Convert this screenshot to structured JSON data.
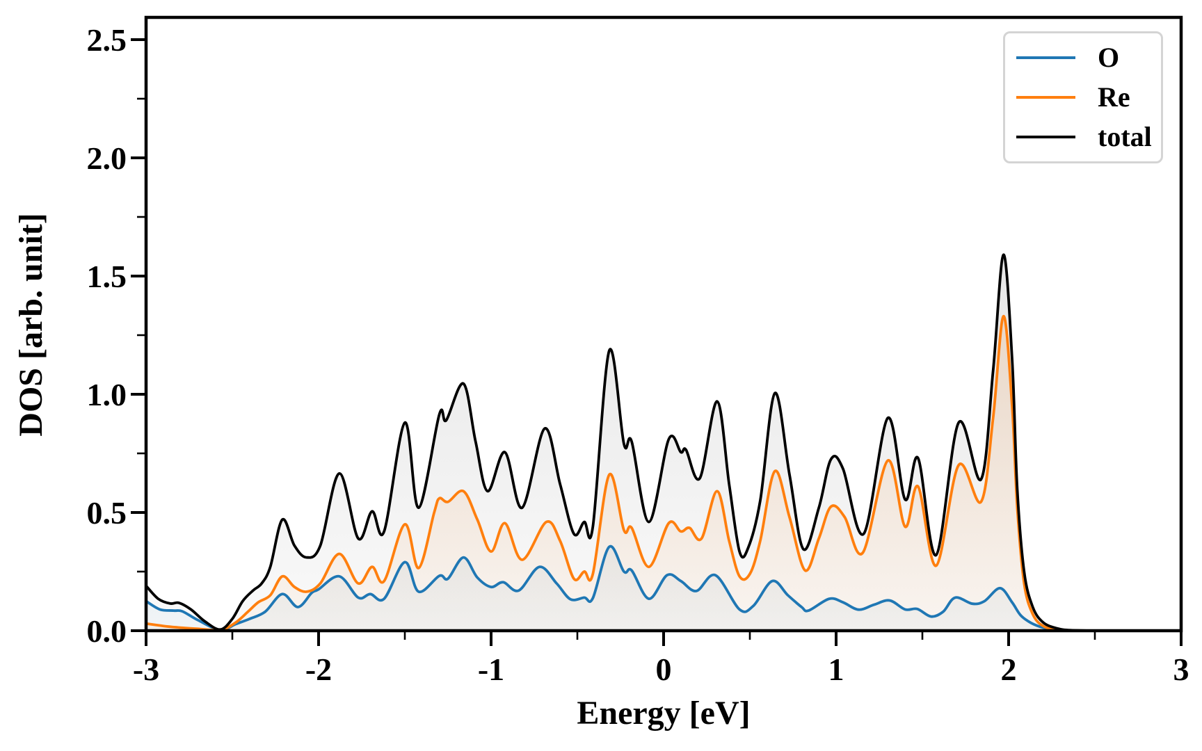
{
  "figure": {
    "background_color": "#ffffff",
    "frame_color": "#000000"
  },
  "legend": {
    "position": "upper right",
    "entries": [
      {
        "label": "O",
        "color": "#1f77b4"
      },
      {
        "label": "Re",
        "color": "#ff7f0e"
      },
      {
        "label": "total",
        "color": "#000000"
      }
    ]
  },
  "chart_data": {
    "type": "line",
    "title": "",
    "xlabel": "Energy [eV]",
    "ylabel": "DOS [arb. unit]",
    "xlim": [
      -3,
      3
    ],
    "ylim": [
      0,
      2.594
    ],
    "grid": false,
    "x_ticks_major": [
      -3,
      -2,
      -1,
      0,
      1,
      2,
      3
    ],
    "x_tick_labels": [
      "-3",
      "-2",
      "-1",
      "0",
      "1",
      "2",
      "3"
    ],
    "x_ticks_minor": [
      -2.5,
      -1.5,
      -0.5,
      0.5,
      1.5,
      2.5
    ],
    "y_ticks_major": [
      0.0,
      0.5,
      1.0,
      1.5,
      2.0,
      2.5
    ],
    "y_tick_labels": [
      "0.0",
      "0.5",
      "1.0",
      "1.5",
      "2.0",
      "2.5"
    ],
    "y_ticks_minor": [
      0.25,
      0.75,
      1.25,
      1.75,
      2.25
    ],
    "legend_position": "upper right",
    "series": [
      {
        "name": "O",
        "color": "#1f77b4",
        "fill": "gradient",
        "points": [
          [
            -3.0,
            0.125
          ],
          [
            -2.92,
            0.09
          ],
          [
            -2.84,
            0.085
          ],
          [
            -2.79,
            0.082
          ],
          [
            -2.7,
            0.045
          ],
          [
            -2.57,
            0.003
          ],
          [
            -2.48,
            0.028
          ],
          [
            -2.4,
            0.05
          ],
          [
            -2.31,
            0.08
          ],
          [
            -2.21,
            0.155
          ],
          [
            -2.12,
            0.1
          ],
          [
            -2.04,
            0.16
          ],
          [
            -2.0,
            0.175
          ],
          [
            -1.88,
            0.23
          ],
          [
            -1.77,
            0.14
          ],
          [
            -1.7,
            0.155
          ],
          [
            -1.62,
            0.135
          ],
          [
            -1.5,
            0.29
          ],
          [
            -1.42,
            0.165
          ],
          [
            -1.3,
            0.232
          ],
          [
            -1.25,
            0.22
          ],
          [
            -1.16,
            0.31
          ],
          [
            -1.08,
            0.225
          ],
          [
            -1.0,
            0.185
          ],
          [
            -0.93,
            0.205
          ],
          [
            -0.84,
            0.17
          ],
          [
            -0.72,
            0.27
          ],
          [
            -0.62,
            0.2
          ],
          [
            -0.54,
            0.133
          ],
          [
            -0.46,
            0.14
          ],
          [
            -0.41,
            0.138
          ],
          [
            -0.315,
            0.355
          ],
          [
            -0.23,
            0.25
          ],
          [
            -0.185,
            0.255
          ],
          [
            -0.085,
            0.135
          ],
          [
            0.02,
            0.235
          ],
          [
            0.1,
            0.21
          ],
          [
            0.19,
            0.168
          ],
          [
            0.3,
            0.235
          ],
          [
            0.44,
            0.09
          ],
          [
            0.52,
            0.105
          ],
          [
            0.63,
            0.21
          ],
          [
            0.72,
            0.15
          ],
          [
            0.8,
            0.1
          ],
          [
            0.84,
            0.085
          ],
          [
            0.96,
            0.135
          ],
          [
            1.04,
            0.12
          ],
          [
            1.13,
            0.089
          ],
          [
            1.22,
            0.11
          ],
          [
            1.31,
            0.128
          ],
          [
            1.4,
            0.09
          ],
          [
            1.47,
            0.092
          ],
          [
            1.55,
            0.06
          ],
          [
            1.62,
            0.08
          ],
          [
            1.69,
            0.14
          ],
          [
            1.79,
            0.114
          ],
          [
            1.86,
            0.125
          ],
          [
            1.95,
            0.18
          ],
          [
            2.02,
            0.12
          ],
          [
            2.07,
            0.065
          ],
          [
            2.13,
            0.033
          ],
          [
            2.2,
            0.013
          ],
          [
            2.28,
            0.004
          ],
          [
            2.36,
            0.001
          ],
          [
            2.5,
            0
          ]
        ]
      },
      {
        "name": "Re",
        "color": "#ff7f0e",
        "fill": "gradient",
        "points": [
          [
            -3.0,
            0.03
          ],
          [
            -2.9,
            0.02
          ],
          [
            -2.8,
            0.013
          ],
          [
            -2.7,
            0.008
          ],
          [
            -2.57,
            0.002
          ],
          [
            -2.48,
            0.035
          ],
          [
            -2.41,
            0.08
          ],
          [
            -2.35,
            0.12
          ],
          [
            -2.28,
            0.15
          ],
          [
            -2.21,
            0.23
          ],
          [
            -2.14,
            0.185
          ],
          [
            -2.07,
            0.165
          ],
          [
            -1.99,
            0.2
          ],
          [
            -1.88,
            0.325
          ],
          [
            -1.77,
            0.2
          ],
          [
            -1.69,
            0.27
          ],
          [
            -1.62,
            0.21
          ],
          [
            -1.5,
            0.45
          ],
          [
            -1.42,
            0.265
          ],
          [
            -1.33,
            0.5
          ],
          [
            -1.3,
            0.56
          ],
          [
            -1.25,
            0.545
          ],
          [
            -1.16,
            0.59
          ],
          [
            -1.08,
            0.47
          ],
          [
            -1.0,
            0.335
          ],
          [
            -0.92,
            0.455
          ],
          [
            -0.82,
            0.3
          ],
          [
            -0.68,
            0.46
          ],
          [
            -0.6,
            0.38
          ],
          [
            -0.52,
            0.22
          ],
          [
            -0.46,
            0.25
          ],
          [
            -0.41,
            0.24
          ],
          [
            -0.315,
            0.66
          ],
          [
            -0.23,
            0.425
          ],
          [
            -0.185,
            0.435
          ],
          [
            -0.085,
            0.27
          ],
          [
            0.03,
            0.455
          ],
          [
            0.1,
            0.42
          ],
          [
            0.15,
            0.435
          ],
          [
            0.22,
            0.39
          ],
          [
            0.31,
            0.59
          ],
          [
            0.38,
            0.38
          ],
          [
            0.44,
            0.23
          ],
          [
            0.5,
            0.24
          ],
          [
            0.56,
            0.38
          ],
          [
            0.645,
            0.675
          ],
          [
            0.73,
            0.48
          ],
          [
            0.82,
            0.255
          ],
          [
            0.9,
            0.39
          ],
          [
            0.97,
            0.525
          ],
          [
            1.05,
            0.48
          ],
          [
            1.155,
            0.33
          ],
          [
            1.3,
            0.72
          ],
          [
            1.4,
            0.44
          ],
          [
            1.475,
            0.61
          ],
          [
            1.58,
            0.275
          ],
          [
            1.71,
            0.7
          ],
          [
            1.84,
            0.545
          ],
          [
            1.91,
            0.9
          ],
          [
            1.97,
            1.33
          ],
          [
            2.02,
            0.95
          ],
          [
            2.05,
            0.52
          ],
          [
            2.09,
            0.2
          ],
          [
            2.14,
            0.07
          ],
          [
            2.2,
            0.02
          ],
          [
            2.28,
            0.004
          ],
          [
            2.36,
            0.001
          ],
          [
            2.5,
            0
          ]
        ]
      },
      {
        "name": "total",
        "color": "#000000",
        "fill": "gradient",
        "points": [
          [
            -3.0,
            0.19
          ],
          [
            -2.93,
            0.135
          ],
          [
            -2.86,
            0.115
          ],
          [
            -2.81,
            0.118
          ],
          [
            -2.74,
            0.09
          ],
          [
            -2.66,
            0.04
          ],
          [
            -2.57,
            0.005
          ],
          [
            -2.5,
            0.05
          ],
          [
            -2.44,
            0.125
          ],
          [
            -2.38,
            0.17
          ],
          [
            -2.33,
            0.2
          ],
          [
            -2.28,
            0.27
          ],
          [
            -2.21,
            0.47
          ],
          [
            -2.14,
            0.36
          ],
          [
            -2.07,
            0.31
          ],
          [
            -1.99,
            0.36
          ],
          [
            -1.88,
            0.665
          ],
          [
            -1.77,
            0.39
          ],
          [
            -1.69,
            0.505
          ],
          [
            -1.62,
            0.42
          ],
          [
            -1.5,
            0.88
          ],
          [
            -1.42,
            0.52
          ],
          [
            -1.3,
            0.915
          ],
          [
            -1.26,
            0.89
          ],
          [
            -1.16,
            1.045
          ],
          [
            -1.09,
            0.8
          ],
          [
            -1.02,
            0.59
          ],
          [
            -0.92,
            0.755
          ],
          [
            -0.82,
            0.52
          ],
          [
            -0.69,
            0.855
          ],
          [
            -0.6,
            0.62
          ],
          [
            -0.52,
            0.41
          ],
          [
            -0.46,
            0.46
          ],
          [
            -0.41,
            0.44
          ],
          [
            -0.315,
            1.185
          ],
          [
            -0.23,
            0.79
          ],
          [
            -0.185,
            0.8
          ],
          [
            -0.085,
            0.46
          ],
          [
            0.03,
            0.81
          ],
          [
            0.1,
            0.755
          ],
          [
            0.13,
            0.765
          ],
          [
            0.21,
            0.645
          ],
          [
            0.31,
            0.97
          ],
          [
            0.38,
            0.62
          ],
          [
            0.44,
            0.335
          ],
          [
            0.49,
            0.35
          ],
          [
            0.56,
            0.55
          ],
          [
            0.645,
            1.005
          ],
          [
            0.73,
            0.66
          ],
          [
            0.81,
            0.345
          ],
          [
            0.9,
            0.52
          ],
          [
            0.97,
            0.725
          ],
          [
            1.04,
            0.685
          ],
          [
            1.16,
            0.41
          ],
          [
            1.3,
            0.9
          ],
          [
            1.4,
            0.555
          ],
          [
            1.475,
            0.73
          ],
          [
            1.58,
            0.32
          ],
          [
            1.71,
            0.88
          ],
          [
            1.84,
            0.64
          ],
          [
            1.91,
            1.1
          ],
          [
            1.97,
            1.59
          ],
          [
            2.02,
            1.15
          ],
          [
            2.05,
            0.6
          ],
          [
            2.09,
            0.25
          ],
          [
            2.14,
            0.1
          ],
          [
            2.2,
            0.035
          ],
          [
            2.28,
            0.01
          ],
          [
            2.36,
            0.002
          ],
          [
            2.5,
            0
          ]
        ]
      }
    ]
  }
}
